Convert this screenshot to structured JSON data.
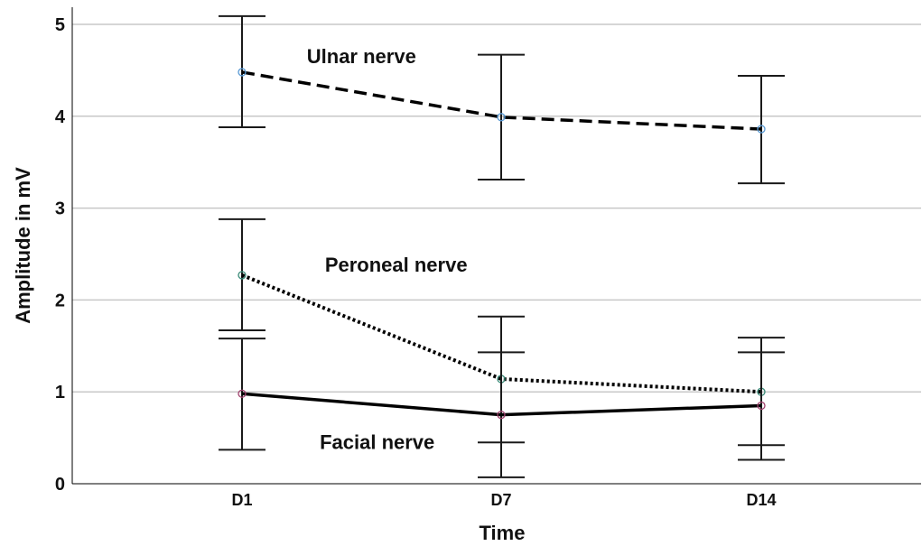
{
  "chart_data": {
    "type": "line",
    "xlabel": "Time",
    "ylabel": "Amplitude in mV",
    "categories": [
      "D1",
      "D7",
      "D14"
    ],
    "ylim": [
      0,
      5
    ],
    "yticks": [
      0,
      1,
      2,
      3,
      4,
      5
    ],
    "grid": true,
    "series": [
      {
        "name": "Ulnar nerve",
        "values": [
          4.48,
          3.99,
          3.86
        ],
        "error_low": [
          3.88,
          3.31,
          3.27
        ],
        "error_high": [
          5.09,
          4.67,
          4.44
        ],
        "line_style": "dashed",
        "marker_color": "#5b9bd5"
      },
      {
        "name": "Peroneal nerve",
        "values": [
          2.27,
          1.14,
          1.0
        ],
        "error_low": [
          1.67,
          0.45,
          0.42
        ],
        "error_high": [
          2.88,
          1.82,
          1.59
        ],
        "line_style": "dotted",
        "marker_color": "#3a8a78"
      },
      {
        "name": "Facial nerve",
        "values": [
          0.98,
          0.75,
          0.85
        ],
        "error_low": [
          0.37,
          0.07,
          0.26
        ],
        "error_high": [
          1.58,
          1.43,
          1.43
        ],
        "line_style": "solid",
        "marker_color": "#a0426e"
      }
    ],
    "annotations": [
      {
        "text": "Ulnar nerve",
        "x_cat": 0.25,
        "y": 4.58
      },
      {
        "text": "Peroneal nerve",
        "x_cat": 0.32,
        "y": 2.31
      },
      {
        "text": "Facial nerve",
        "x_cat": 0.3,
        "y": 0.38
      }
    ]
  }
}
